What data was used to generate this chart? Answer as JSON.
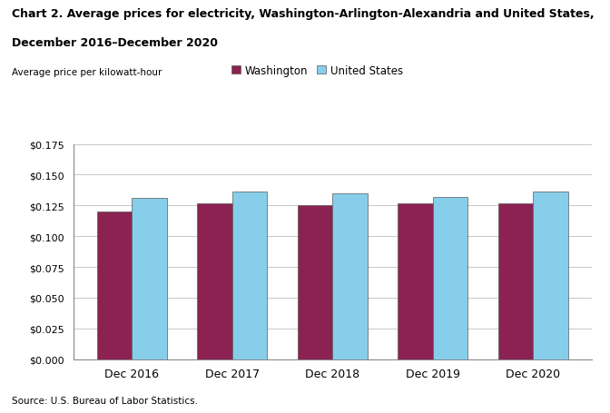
{
  "title_line1": "Chart 2. Average prices for electricity, Washington-Arlington-Alexandria and United States,",
  "title_line2": "December 2016–December 2020",
  "ylabel": "Average price per kilowatt-hour",
  "categories": [
    "Dec 2016",
    "Dec 2017",
    "Dec 2018",
    "Dec 2019",
    "Dec 2020"
  ],
  "washington": [
    0.1202,
    0.1271,
    0.1251,
    0.1271,
    0.1271
  ],
  "us": [
    0.1313,
    0.1362,
    0.1352,
    0.1322,
    0.1362
  ],
  "washington_color": "#8B2252",
  "us_color": "#87CEEB",
  "bar_edge_color": "#5a5a5a",
  "legend_labels": [
    "Washington",
    "United States"
  ],
  "ylim": [
    0,
    0.175
  ],
  "yticks": [
    0.0,
    0.025,
    0.05,
    0.075,
    0.1,
    0.125,
    0.15,
    0.175
  ],
  "source": "Source: U.S. Bureau of Labor Statistics.",
  "background_color": "#ffffff",
  "grid_color": "#c8c8c8",
  "bar_width": 0.35
}
